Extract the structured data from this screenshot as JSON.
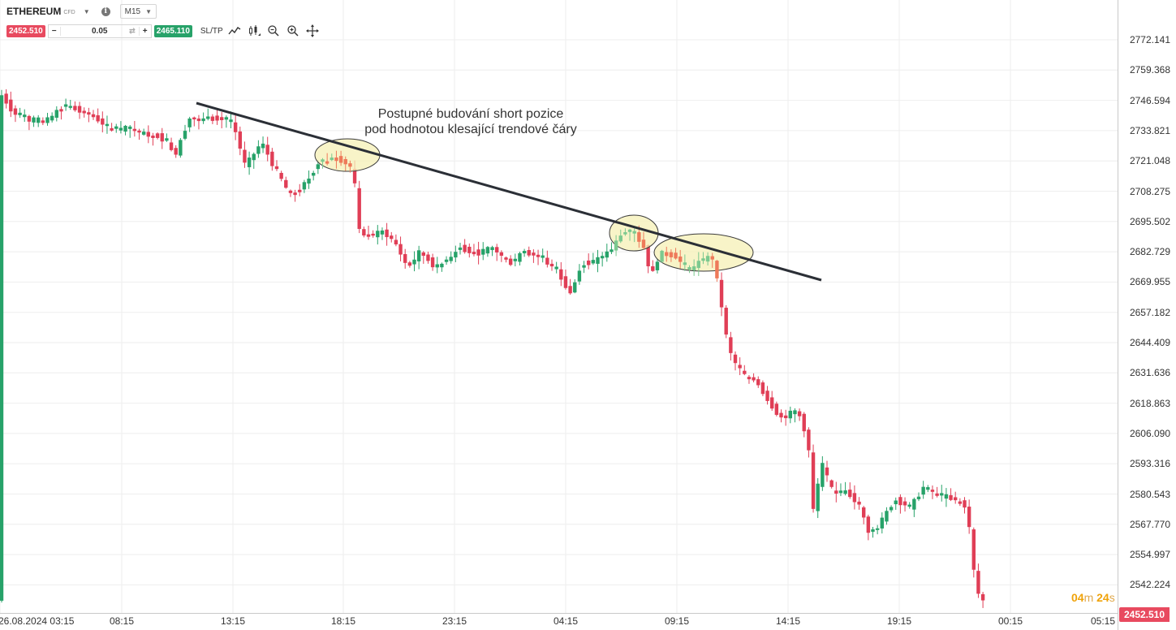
{
  "toolbar": {
    "symbol": "ETHEREUM",
    "symbol_type": "CFD",
    "timeframe": "M15",
    "sell_price": "2452.510",
    "buy_price": "2465.110",
    "volume": "0.05",
    "minus": "−",
    "plus": "+",
    "swap_glyph": "⇄",
    "sltp": "SL/TP",
    "info": "i",
    "caret": "▼",
    "tools": [
      "line-chart-icon",
      "candles-icon",
      "zoom-out-icon",
      "zoom-in-icon",
      "crosshair-icon"
    ]
  },
  "annotation": {
    "line1": "Postupné budování short pozice",
    "line2": "pod hodnotou klesající trendové čáry"
  },
  "price_axis": {
    "labels": [
      "2772.141",
      "2759.368",
      "2746.594",
      "2733.821",
      "2721.048",
      "2708.275",
      "2695.502",
      "2682.729",
      "2669.955",
      "2657.182",
      "2644.409",
      "2631.636",
      "2618.863",
      "2606.090",
      "2593.316",
      "2580.543",
      "2567.770",
      "2554.997",
      "2542.224"
    ],
    "current_price": "2452.510"
  },
  "time_axis": {
    "labels": [
      "26.08.2024 03:15",
      "08:15",
      "13:15",
      "18:15",
      "23:15",
      "04:15",
      "09:15",
      "14:15",
      "19:15",
      "00:15",
      "05:15"
    ]
  },
  "countdown": {
    "minutes": "04",
    "m": "m",
    "seconds": "24",
    "s": "s"
  },
  "colors": {
    "up": "#27a269",
    "down": "#e03e56",
    "trendline": "#2b2f36",
    "highlight": "#f5f0b5",
    "grid": "#eeeeee"
  }
}
